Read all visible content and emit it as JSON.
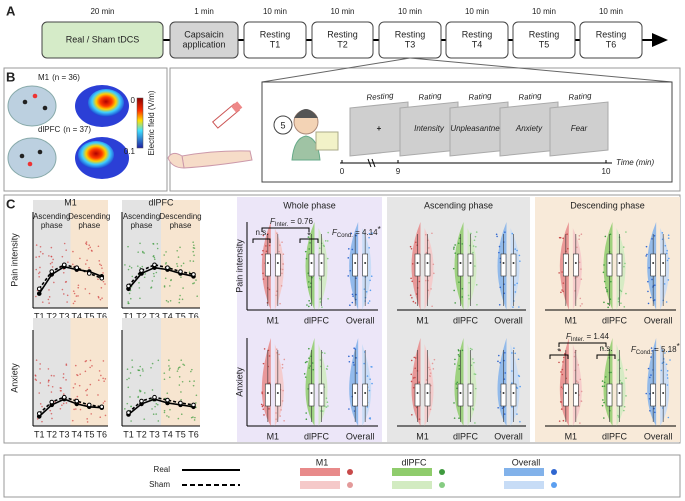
{
  "panel_labels": [
    "A",
    "B",
    "C"
  ],
  "timeline": {
    "durations": [
      "20 min",
      "1 min",
      "10 min",
      "10 min",
      "10 min",
      "10 min",
      "10 min",
      "10 min"
    ],
    "steps": [
      [
        "Real / Sham tDCS"
      ],
      [
        "Capsaicin",
        "application"
      ],
      [
        "Resting",
        "T1"
      ],
      [
        "Resting",
        "T2"
      ],
      [
        "Resting",
        "T3"
      ],
      [
        "Resting",
        "T4"
      ],
      [
        "Resting",
        "T5"
      ],
      [
        "Resting",
        "T6"
      ]
    ]
  },
  "montages": [
    {
      "name": "M1",
      "n_label": "(n = 36)"
    },
    {
      "name": "dlPFC",
      "n_label": "(n = 37)"
    }
  ],
  "colorbar": {
    "title": "Electric field (V/m)",
    "ticks": [
      "0",
      "0.1"
    ]
  },
  "protocol": {
    "bubble": "5",
    "screens": [
      {
        "title": "Resting",
        "body": "+"
      },
      {
        "title": "Rating",
        "body": "Intensity"
      },
      {
        "title": "Rating",
        "body": "Unpleasantness"
      },
      {
        "title": "Rating",
        "body": "Anxiety"
      },
      {
        "title": "Rating",
        "body": "Fear"
      }
    ],
    "time_ticks": [
      "0",
      "9",
      "10"
    ],
    "time_label": "Time (min)"
  },
  "chart_data": [
    {
      "type": "line",
      "title": "M1",
      "ylabel": "Pain intensity",
      "phase_labels": [
        [
          "Ascending",
          "phase"
        ],
        [
          "Descending",
          "phase"
        ]
      ],
      "categories": [
        "T1",
        "T2",
        "T3",
        "T4",
        "T5",
        "T6"
      ],
      "ylim": [
        0,
        10
      ],
      "series": [
        {
          "name": "Real",
          "color": "#000000",
          "values": [
            1.5,
            3.5,
            4.3,
            4.0,
            3.8,
            3.3
          ]
        },
        {
          "name": "Sham",
          "color": "#000000",
          "values": [
            2.0,
            3.8,
            4.5,
            4.2,
            3.6,
            3.1
          ]
        }
      ]
    },
    {
      "type": "line",
      "title": "dlPFC",
      "phase_labels": [
        [
          "Ascending",
          "phase"
        ],
        [
          "Descending",
          "phase"
        ]
      ],
      "categories": [
        "T1",
        "T2",
        "T3",
        "T4",
        "T5",
        "T6"
      ],
      "ylim": [
        0,
        10
      ],
      "series": [
        {
          "name": "Real",
          "color": "#000000",
          "values": [
            2.0,
            3.6,
            4.2,
            4.0,
            3.6,
            3.3
          ]
        },
        {
          "name": "Sham",
          "color": "#000000",
          "values": [
            2.3,
            3.9,
            4.5,
            4.2,
            3.8,
            3.5
          ]
        }
      ]
    },
    {
      "type": "line",
      "ylabel": "Anxiety",
      "categories": [
        "T1",
        "T2",
        "T3",
        "T4",
        "T5",
        "T6"
      ],
      "ylim": [
        0,
        10
      ],
      "series": [
        {
          "name": "Real",
          "color": "#000000",
          "values": [
            1.0,
            2.2,
            2.8,
            2.3,
            2.0,
            1.9
          ]
        },
        {
          "name": "Sham",
          "color": "#000000",
          "values": [
            1.3,
            2.5,
            3.0,
            2.6,
            2.2,
            2.0
          ]
        }
      ]
    },
    {
      "type": "line",
      "categories": [
        "T1",
        "T2",
        "T3",
        "T4",
        "T5",
        "T6"
      ],
      "ylim": [
        0,
        10
      ],
      "series": [
        {
          "name": "Real",
          "color": "#000000",
          "values": [
            1.2,
            2.3,
            2.8,
            2.4,
            2.2,
            2.0
          ]
        },
        {
          "name": "Sham",
          "color": "#000000",
          "values": [
            1.4,
            2.6,
            3.0,
            2.7,
            2.4,
            2.2
          ]
        }
      ]
    }
  ],
  "violin_panels": {
    "ylabels": [
      "Pain intensity",
      "Anxiety"
    ],
    "phases": [
      {
        "title": "Whole phase",
        "categories": [
          "M1",
          "dlPFC",
          "Overall"
        ]
      },
      {
        "title": "Ascending phase",
        "categories": [
          "M1",
          "dlPFC",
          "Overall"
        ]
      },
      {
        "title": "Descending phase",
        "categories": [
          "M1",
          "dlPFC",
          "Overall"
        ]
      }
    ],
    "annotations": {
      "whole_pain": {
        "ns": "n.s.",
        "star": "*",
        "inter": {
          "symbol": "F",
          "sub": "Inter.",
          "value": " = 0.76"
        },
        "cond": {
          "symbol": "F",
          "sub": "Cond.",
          "value": " = 4.14",
          "sig": "*"
        }
      },
      "desc_anx": {
        "star": "*",
        "ns": "n.s.",
        "inter": {
          "symbol": "F",
          "sub": "Inter.",
          "value": " = 1.44"
        },
        "cond": {
          "symbol": "F",
          "sub": "Cond.",
          "value": " = 5.18",
          "sig": "*"
        }
      }
    }
  },
  "legend": {
    "groups": [
      "M1",
      "dlPFC",
      "Overall"
    ]
  }
}
